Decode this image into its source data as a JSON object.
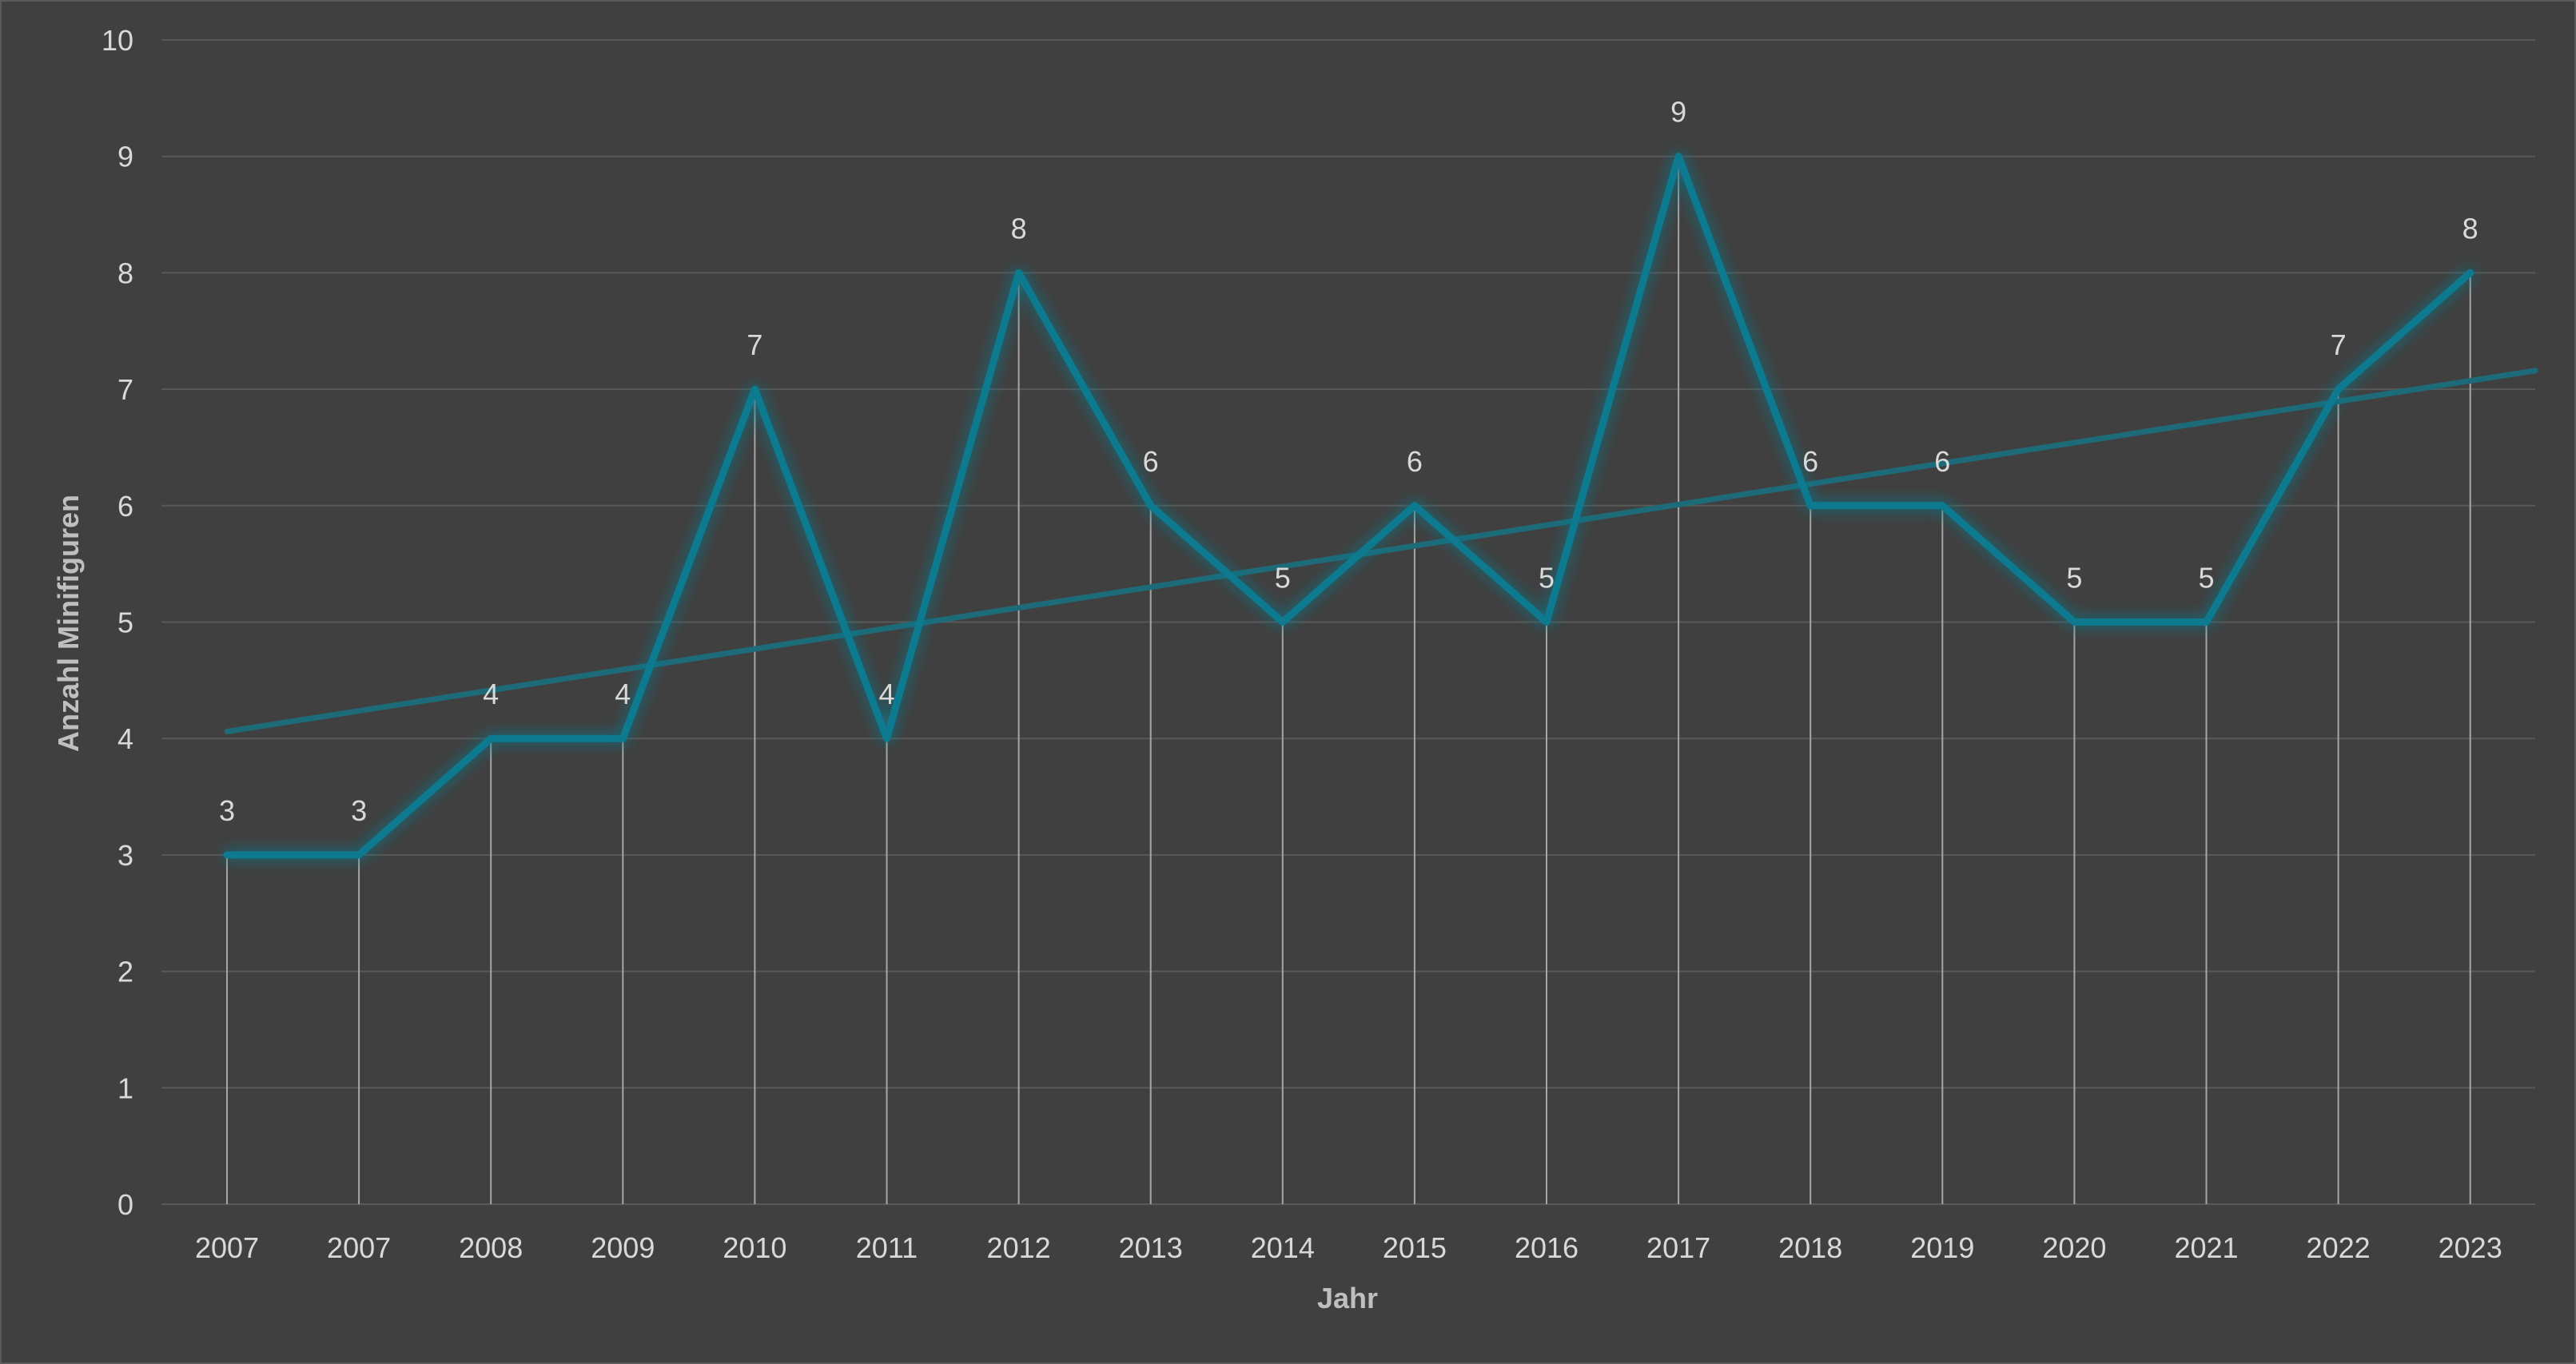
{
  "chart_data": {
    "type": "line",
    "categories": [
      "2007",
      "2007",
      "2008",
      "2009",
      "2010",
      "2011",
      "2012",
      "2013",
      "2014",
      "2015",
      "2016",
      "2017",
      "2018",
      "2019",
      "2020",
      "2021",
      "2022",
      "2023"
    ],
    "series": [
      {
        "values": [
          3,
          3,
          4,
          4,
          7,
          4,
          8,
          6,
          5,
          6,
          5,
          9,
          6,
          6,
          5,
          5,
          7,
          8
        ],
        "color": "#0b7a8f"
      }
    ],
    "trendline": {
      "type": "linear",
      "start_value": 4.06,
      "end_value": 7.16,
      "color": "#1d6b79"
    },
    "data_labels": true,
    "drop_lines": true,
    "xlabel": "Jahr",
    "ylabel": "Anzahl Minifiguren",
    "ylim": [
      0,
      10
    ],
    "yticks": [
      0,
      1,
      2,
      3,
      4,
      5,
      6,
      7,
      8,
      9,
      10
    ],
    "grid": true,
    "legend": "none",
    "colors": {
      "background": "#404040",
      "gridline": "#595959",
      "drop_line": "#a6a6a6",
      "text": "#d9d9d9",
      "axis_title": "#bfbfbf"
    }
  }
}
